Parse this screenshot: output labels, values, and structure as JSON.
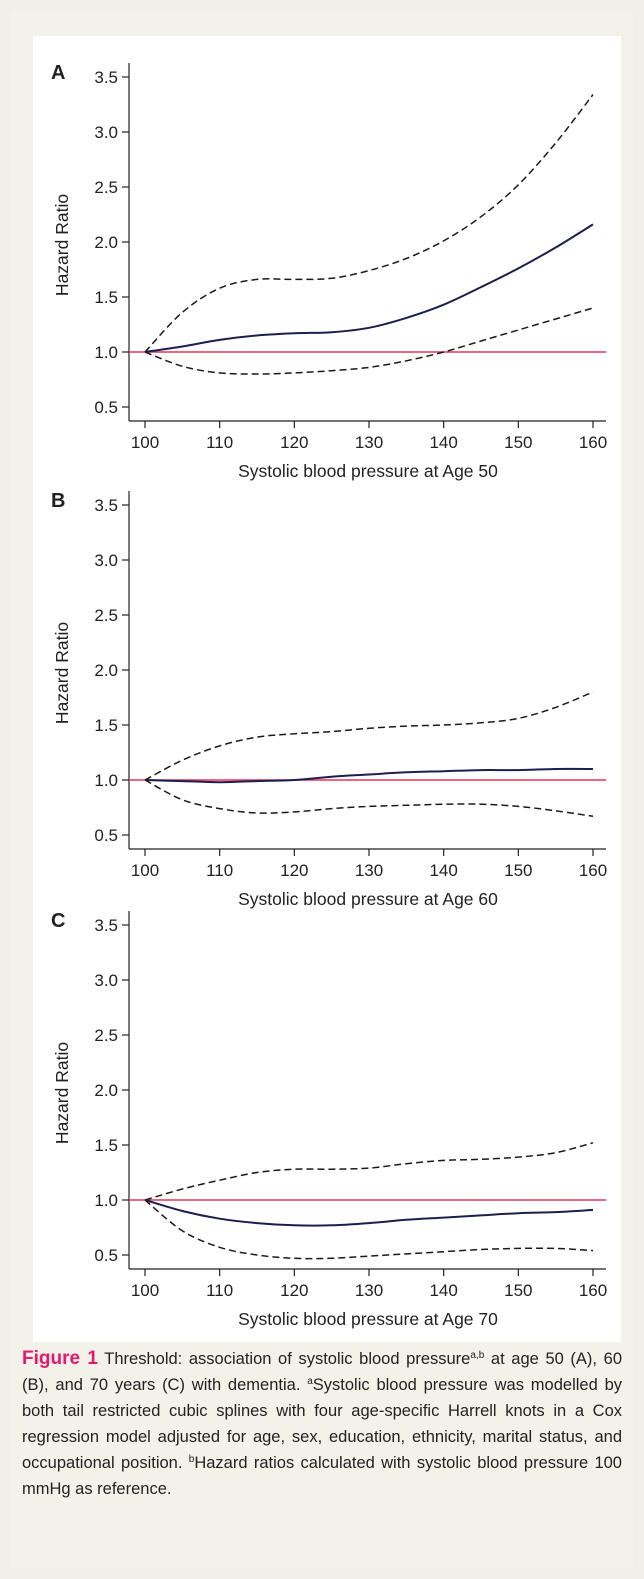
{
  "chart_data": [
    {
      "type": "line",
      "panel_label": "A",
      "xlabel": "Systolic blood pressure at Age 50",
      "ylabel": "Hazard Ratio",
      "xlim": [
        100,
        160
      ],
      "ylim": [
        0.5,
        3.5
      ],
      "xticks": [
        100,
        110,
        120,
        130,
        140,
        150,
        160
      ],
      "yticks": [
        0.5,
        1.0,
        1.5,
        2.0,
        2.5,
        3.0,
        3.5
      ],
      "grid": false,
      "reference_line": 1.0,
      "x": [
        100,
        105,
        110,
        115,
        120,
        125,
        130,
        135,
        140,
        145,
        150,
        155,
        160
      ],
      "series": [
        {
          "style": "dashed",
          "values": [
            1.0,
            1.36,
            1.58,
            1.66,
            1.66,
            1.67,
            1.74,
            1.85,
            2.01,
            2.23,
            2.52,
            2.9,
            3.34
          ]
        },
        {
          "style": "solid",
          "values": [
            1.0,
            1.05,
            1.11,
            1.15,
            1.17,
            1.18,
            1.22,
            1.31,
            1.43,
            1.59,
            1.76,
            1.95,
            2.16
          ]
        },
        {
          "style": "dashed",
          "values": [
            1.0,
            0.87,
            0.81,
            0.8,
            0.81,
            0.83,
            0.86,
            0.92,
            1.0,
            1.1,
            1.2,
            1.3,
            1.4
          ]
        }
      ]
    },
    {
      "type": "line",
      "panel_label": "B",
      "xlabel": "Systolic blood pressure at Age 60",
      "ylabel": "Hazard Ratio",
      "xlim": [
        100,
        160
      ],
      "ylim": [
        0.5,
        3.5
      ],
      "xticks": [
        100,
        110,
        120,
        130,
        140,
        150,
        160
      ],
      "yticks": [
        0.5,
        1.0,
        1.5,
        2.0,
        2.5,
        3.0,
        3.5
      ],
      "grid": false,
      "reference_line": 1.0,
      "x": [
        100,
        105,
        110,
        115,
        120,
        125,
        130,
        135,
        140,
        145,
        150,
        155,
        160
      ],
      "series": [
        {
          "style": "dashed",
          "values": [
            1.0,
            1.18,
            1.31,
            1.39,
            1.42,
            1.44,
            1.47,
            1.49,
            1.5,
            1.52,
            1.56,
            1.66,
            1.8
          ]
        },
        {
          "style": "solid",
          "values": [
            1.0,
            0.99,
            0.98,
            0.99,
            1.0,
            1.03,
            1.05,
            1.07,
            1.08,
            1.09,
            1.09,
            1.1,
            1.1
          ]
        },
        {
          "style": "dashed",
          "values": [
            1.0,
            0.82,
            0.74,
            0.7,
            0.71,
            0.74,
            0.76,
            0.77,
            0.78,
            0.78,
            0.76,
            0.72,
            0.67
          ]
        }
      ]
    },
    {
      "type": "line",
      "panel_label": "C",
      "xlabel": "Systolic blood pressure at Age 70",
      "ylabel": "Hazard Ratio",
      "xlim": [
        100,
        160
      ],
      "ylim": [
        0.5,
        3.5
      ],
      "xticks": [
        100,
        110,
        120,
        130,
        140,
        150,
        160
      ],
      "yticks": [
        0.5,
        1.0,
        1.5,
        2.0,
        2.5,
        3.0,
        3.5
      ],
      "grid": false,
      "reference_line": 1.0,
      "x": [
        100,
        105,
        110,
        115,
        120,
        125,
        130,
        135,
        140,
        145,
        150,
        155,
        160
      ],
      "series": [
        {
          "style": "dashed",
          "values": [
            1.0,
            1.1,
            1.18,
            1.25,
            1.28,
            1.28,
            1.29,
            1.33,
            1.36,
            1.37,
            1.39,
            1.43,
            1.52
          ]
        },
        {
          "style": "solid",
          "values": [
            1.0,
            0.9,
            0.83,
            0.79,
            0.77,
            0.77,
            0.79,
            0.82,
            0.84,
            0.86,
            0.88,
            0.89,
            0.91
          ]
        },
        {
          "style": "dashed",
          "values": [
            1.0,
            0.72,
            0.57,
            0.5,
            0.47,
            0.47,
            0.49,
            0.51,
            0.53,
            0.55,
            0.56,
            0.56,
            0.54
          ]
        }
      ]
    }
  ],
  "caption": {
    "label": "Figure 1",
    "text_1": " Threshold: association of systolic blood pressure",
    "sup_1": "a,b",
    "text_2": " at age 50 (A), 60 (B), and 70 years (C) with dementia. ",
    "sup_2": "a",
    "text_3": "Systolic blood pressure was modelled by both tail restricted cubic splines with four age-specific Harrell knots in a Cox regression model adjusted for age, sex, education, ethnicity, marital status, and occupational position. ",
    "sup_3": "b",
    "text_4": "Hazard ratios calculated with systolic blood pressure 100 mmHg as reference."
  },
  "colors": {
    "background": "#f0f0e6",
    "plot_background": "#ffffff",
    "estimate_line": "#1b1f4e",
    "ci_line": "#1a1a1a",
    "reference_line": "#e8325a",
    "figure_label": "#e8186e"
  }
}
